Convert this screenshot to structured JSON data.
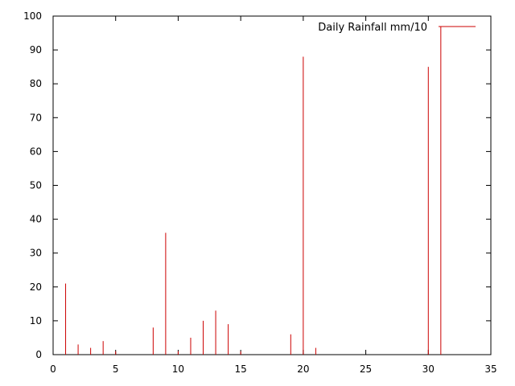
{
  "chart_data": {
    "type": "bar",
    "style": "impulses",
    "title": "",
    "xlabel": "",
    "ylabel": "",
    "xlim": [
      0,
      35
    ],
    "ylim": [
      0,
      100
    ],
    "x_ticks": [
      0,
      5,
      10,
      15,
      20,
      25,
      30,
      35
    ],
    "y_ticks": [
      0,
      10,
      20,
      30,
      40,
      50,
      60,
      70,
      80,
      90,
      100
    ],
    "grid": false,
    "legend_position": "top-right",
    "series": [
      {
        "name": "Daily Rainfall mm/10",
        "color": "#cc0000",
        "points": [
          {
            "x": 1,
            "y": 21
          },
          {
            "x": 2,
            "y": 3
          },
          {
            "x": 3,
            "y": 2
          },
          {
            "x": 4,
            "y": 4
          },
          {
            "x": 5,
            "y": 1
          },
          {
            "x": 8,
            "y": 8
          },
          {
            "x": 9,
            "y": 36
          },
          {
            "x": 10,
            "y": 1
          },
          {
            "x": 11,
            "y": 5
          },
          {
            "x": 12,
            "y": 10
          },
          {
            "x": 13,
            "y": 13
          },
          {
            "x": 14,
            "y": 9
          },
          {
            "x": 15,
            "y": 1
          },
          {
            "x": 19,
            "y": 6
          },
          {
            "x": 20,
            "y": 88
          },
          {
            "x": 21,
            "y": 2
          },
          {
            "x": 30,
            "y": 85
          },
          {
            "x": 31,
            "y": 97
          }
        ]
      }
    ]
  }
}
